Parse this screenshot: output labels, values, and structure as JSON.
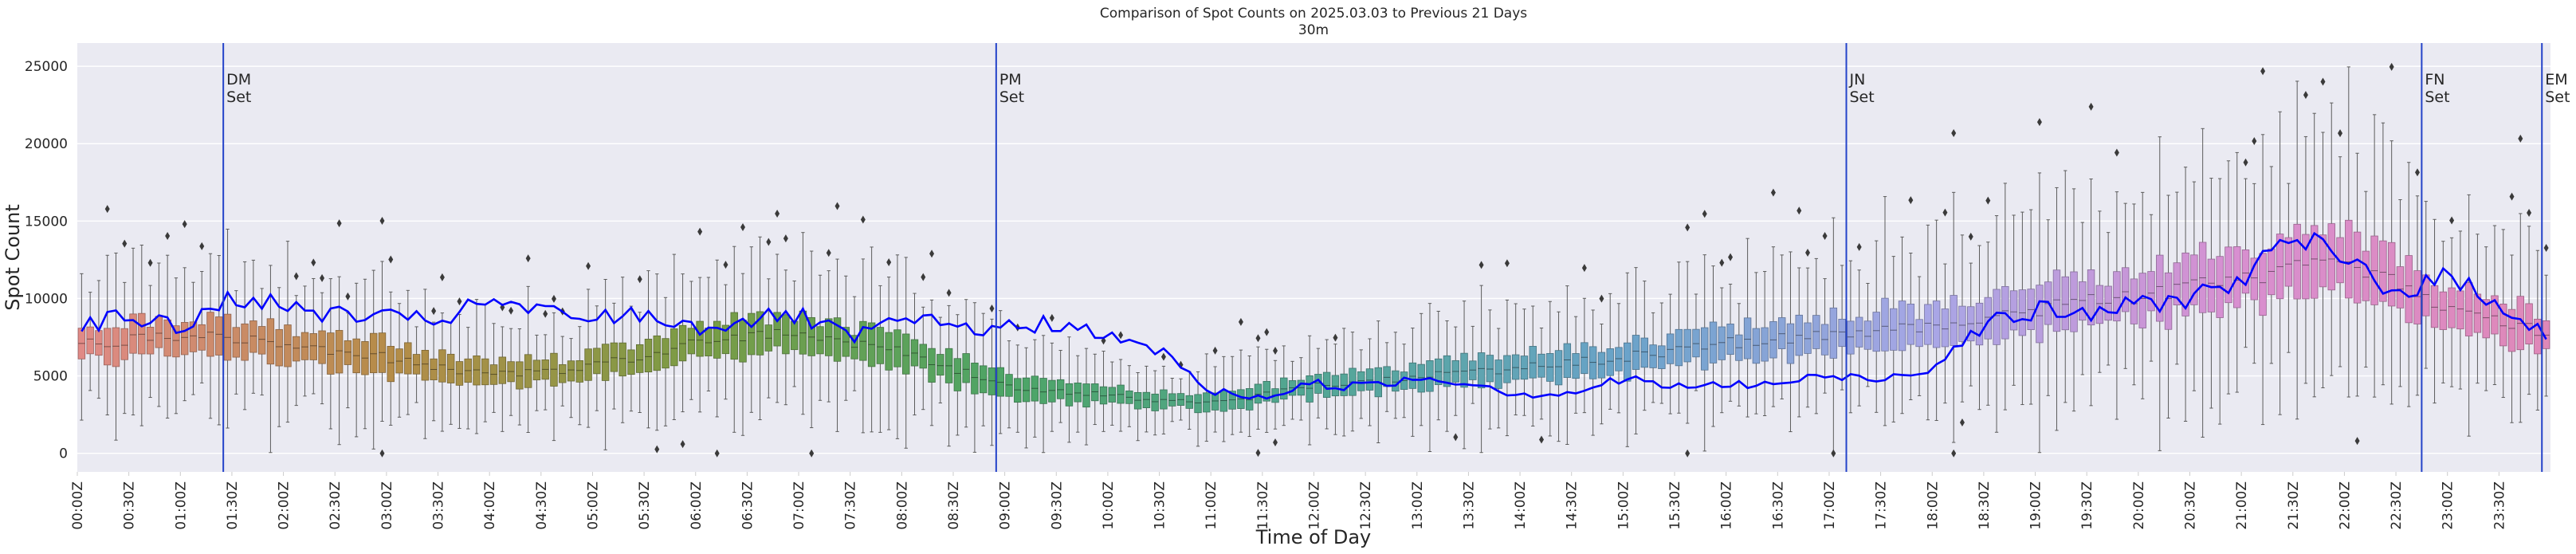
{
  "chart_data": {
    "type": "box",
    "title": "Comparison of Spot Counts on 2025.03.03 to Previous 21 Days",
    "subtitle": "30m",
    "xlabel": "Time of Day",
    "ylabel": "Spot Count",
    "ylim": [
      -1200,
      26500
    ],
    "yticks": [
      0,
      5000,
      10000,
      15000,
      20000,
      25000
    ],
    "grid": true,
    "bins_per_day": 288,
    "bin_minutes": 5,
    "x_tick_labels": [
      "00:00Z",
      "00:30Z",
      "01:00Z",
      "01:30Z",
      "02:00Z",
      "02:30Z",
      "03:00Z",
      "03:30Z",
      "04:00Z",
      "04:30Z",
      "05:00Z",
      "05:30Z",
      "06:00Z",
      "06:30Z",
      "07:00Z",
      "07:30Z",
      "08:00Z",
      "08:30Z",
      "09:00Z",
      "09:30Z",
      "10:00Z",
      "10:30Z",
      "11:00Z",
      "11:30Z",
      "12:00Z",
      "12:30Z",
      "13:00Z",
      "13:30Z",
      "14:00Z",
      "14:30Z",
      "15:00Z",
      "15:30Z",
      "16:00Z",
      "16:30Z",
      "17:00Z",
      "17:30Z",
      "18:00Z",
      "18:30Z",
      "19:00Z",
      "19:30Z",
      "20:00Z",
      "20:30Z",
      "21:00Z",
      "21:30Z",
      "22:00Z",
      "22:30Z",
      "23:00Z",
      "23:30Z"
    ],
    "events": [
      {
        "time": "01:25Z",
        "label1": "DM",
        "label2": "Set"
      },
      {
        "time": "08:55Z",
        "label1": "PM",
        "label2": "Set"
      },
      {
        "time": "17:10Z",
        "label1": "JN",
        "label2": "Set"
      },
      {
        "time": "22:45Z",
        "label1": "FN",
        "label2": "Set"
      },
      {
        "time": "23:55Z",
        "label1": "EM",
        "label2": "Set"
      }
    ],
    "median_profile": {
      "hours": [
        0,
        1,
        2,
        3,
        4,
        5,
        6,
        7,
        8,
        9,
        10,
        11,
        12,
        13,
        14,
        15,
        16,
        17,
        18,
        19,
        20,
        21,
        22,
        23,
        24
      ],
      "values": [
        7000,
        7700,
        7100,
        6200,
        5000,
        5600,
        7200,
        7900,
        6600,
        4400,
        3700,
        3200,
        4300,
        4900,
        5500,
        6200,
        7100,
        7700,
        8300,
        9300,
        10200,
        11200,
        12600,
        9500,
        7600
      ]
    },
    "current_day_line": {
      "color": "#0000ff",
      "hours": [
        0,
        0.5,
        1,
        1.5,
        2,
        2.5,
        3,
        3.5,
        4,
        4.5,
        5,
        5.5,
        6,
        6.5,
        7,
        7.5,
        8,
        8.5,
        9,
        9.5,
        10,
        10.5,
        11,
        11.5,
        12,
        12.5,
        13,
        13.5,
        14,
        14.5,
        15,
        15.5,
        16,
        16.5,
        17,
        17.5,
        18,
        18.5,
        19,
        19.5,
        20,
        20.5,
        21,
        21.5,
        22,
        22.5,
        23,
        23.5,
        24
      ],
      "values": [
        8200,
        8900,
        8000,
        10200,
        9400,
        9000,
        8700,
        8600,
        9800,
        9100,
        8700,
        9000,
        8100,
        8600,
        8900,
        7400,
        8600,
        8200,
        8000,
        8500,
        7400,
        6700,
        4000,
        3600,
        4500,
        4300,
        4900,
        4600,
        3800,
        3900,
        4800,
        4300,
        4400,
        4500,
        5000,
        4800,
        5600,
        8400,
        9200,
        9000,
        9600,
        10100,
        11200,
        13800,
        12600,
        10500,
        11300,
        9800,
        7400
      ]
    },
    "hue_stops": [
      "#e08a86",
      "#b58c48",
      "#7a9c45",
      "#4da566",
      "#52a694",
      "#6aa3c9",
      "#a8a6e6",
      "#d88fd0",
      "#df88b8"
    ]
  }
}
